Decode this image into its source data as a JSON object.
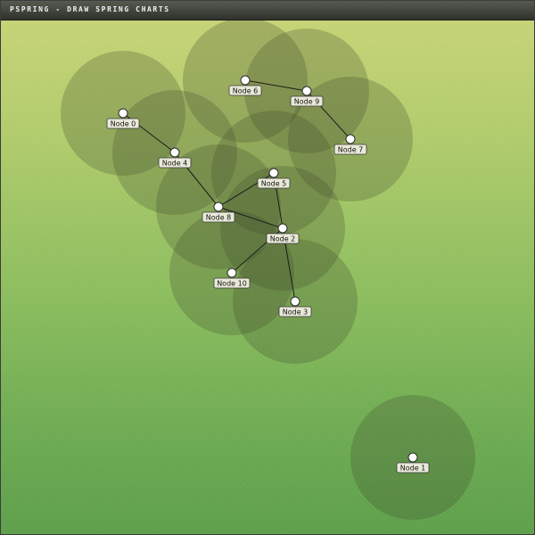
{
  "window": {
    "title": "PSPRING - DRAW SPRING CHARTS"
  },
  "graph": {
    "colors": {
      "halo": "#3f4a2c",
      "edge": "#1c1c1c",
      "node_fill": "#ffffff",
      "node_stroke": "#2a2a2a",
      "label_fill": "#e9e9d9",
      "label_stroke": "#3a3a3a"
    },
    "nodes": [
      {
        "id": "n0",
        "label": "Node 0"
      },
      {
        "id": "n1",
        "label": "Node 1"
      },
      {
        "id": "n2",
        "label": "Node 2"
      },
      {
        "id": "n3",
        "label": "Node 3"
      },
      {
        "id": "n4",
        "label": "Node 4"
      },
      {
        "id": "n5",
        "label": "Node 5"
      },
      {
        "id": "n6",
        "label": "Node 6"
      },
      {
        "id": "n7",
        "label": "Node 7"
      },
      {
        "id": "n8",
        "label": "Node 8"
      },
      {
        "id": "n9",
        "label": "Node 9"
      },
      {
        "id": "n10",
        "label": "Node 10"
      }
    ],
    "edges": [
      [
        "n0",
        "n4"
      ],
      [
        "n4",
        "n8"
      ],
      [
        "n8",
        "n5"
      ],
      [
        "n8",
        "n2"
      ],
      [
        "n5",
        "n2"
      ],
      [
        "n2",
        "n10"
      ],
      [
        "n2",
        "n3"
      ],
      [
        "n6",
        "n9"
      ],
      [
        "n9",
        "n7"
      ]
    ]
  }
}
